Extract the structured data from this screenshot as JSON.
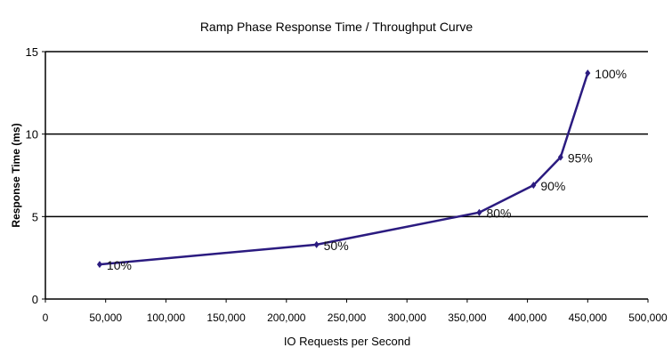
{
  "chart_data": {
    "type": "line",
    "title": "Ramp Phase Response Time / Throughput Curve",
    "xlabel": "IO Requests per Second",
    "ylabel": "Response Time (ms)",
    "xlim": [
      0,
      500000
    ],
    "ylim": [
      0,
      15
    ],
    "x_ticks": [
      0,
      50000,
      100000,
      150000,
      200000,
      250000,
      300000,
      350000,
      400000,
      450000,
      500000
    ],
    "x_tick_labels": [
      "0",
      "50,000",
      "100,000",
      "150,000",
      "200,000",
      "250,000",
      "300,000",
      "350,000",
      "400,000",
      "450,000",
      "500,000"
    ],
    "y_ticks": [
      0,
      5,
      10,
      15
    ],
    "y_tick_labels": [
      "0",
      "5",
      "10",
      "15"
    ],
    "grid": "horizontal",
    "line_color": "#2b1b80",
    "series": [
      {
        "points": [
          {
            "x": 45000,
            "y": 2.1,
            "label": "10%"
          },
          {
            "x": 225000,
            "y": 3.3,
            "label": "50%"
          },
          {
            "x": 360000,
            "y": 5.25,
            "label": "80%"
          },
          {
            "x": 405000,
            "y": 6.9,
            "label": "90%"
          },
          {
            "x": 427500,
            "y": 8.6,
            "label": "95%"
          },
          {
            "x": 450000,
            "y": 13.7,
            "label": "100%"
          }
        ]
      }
    ]
  }
}
